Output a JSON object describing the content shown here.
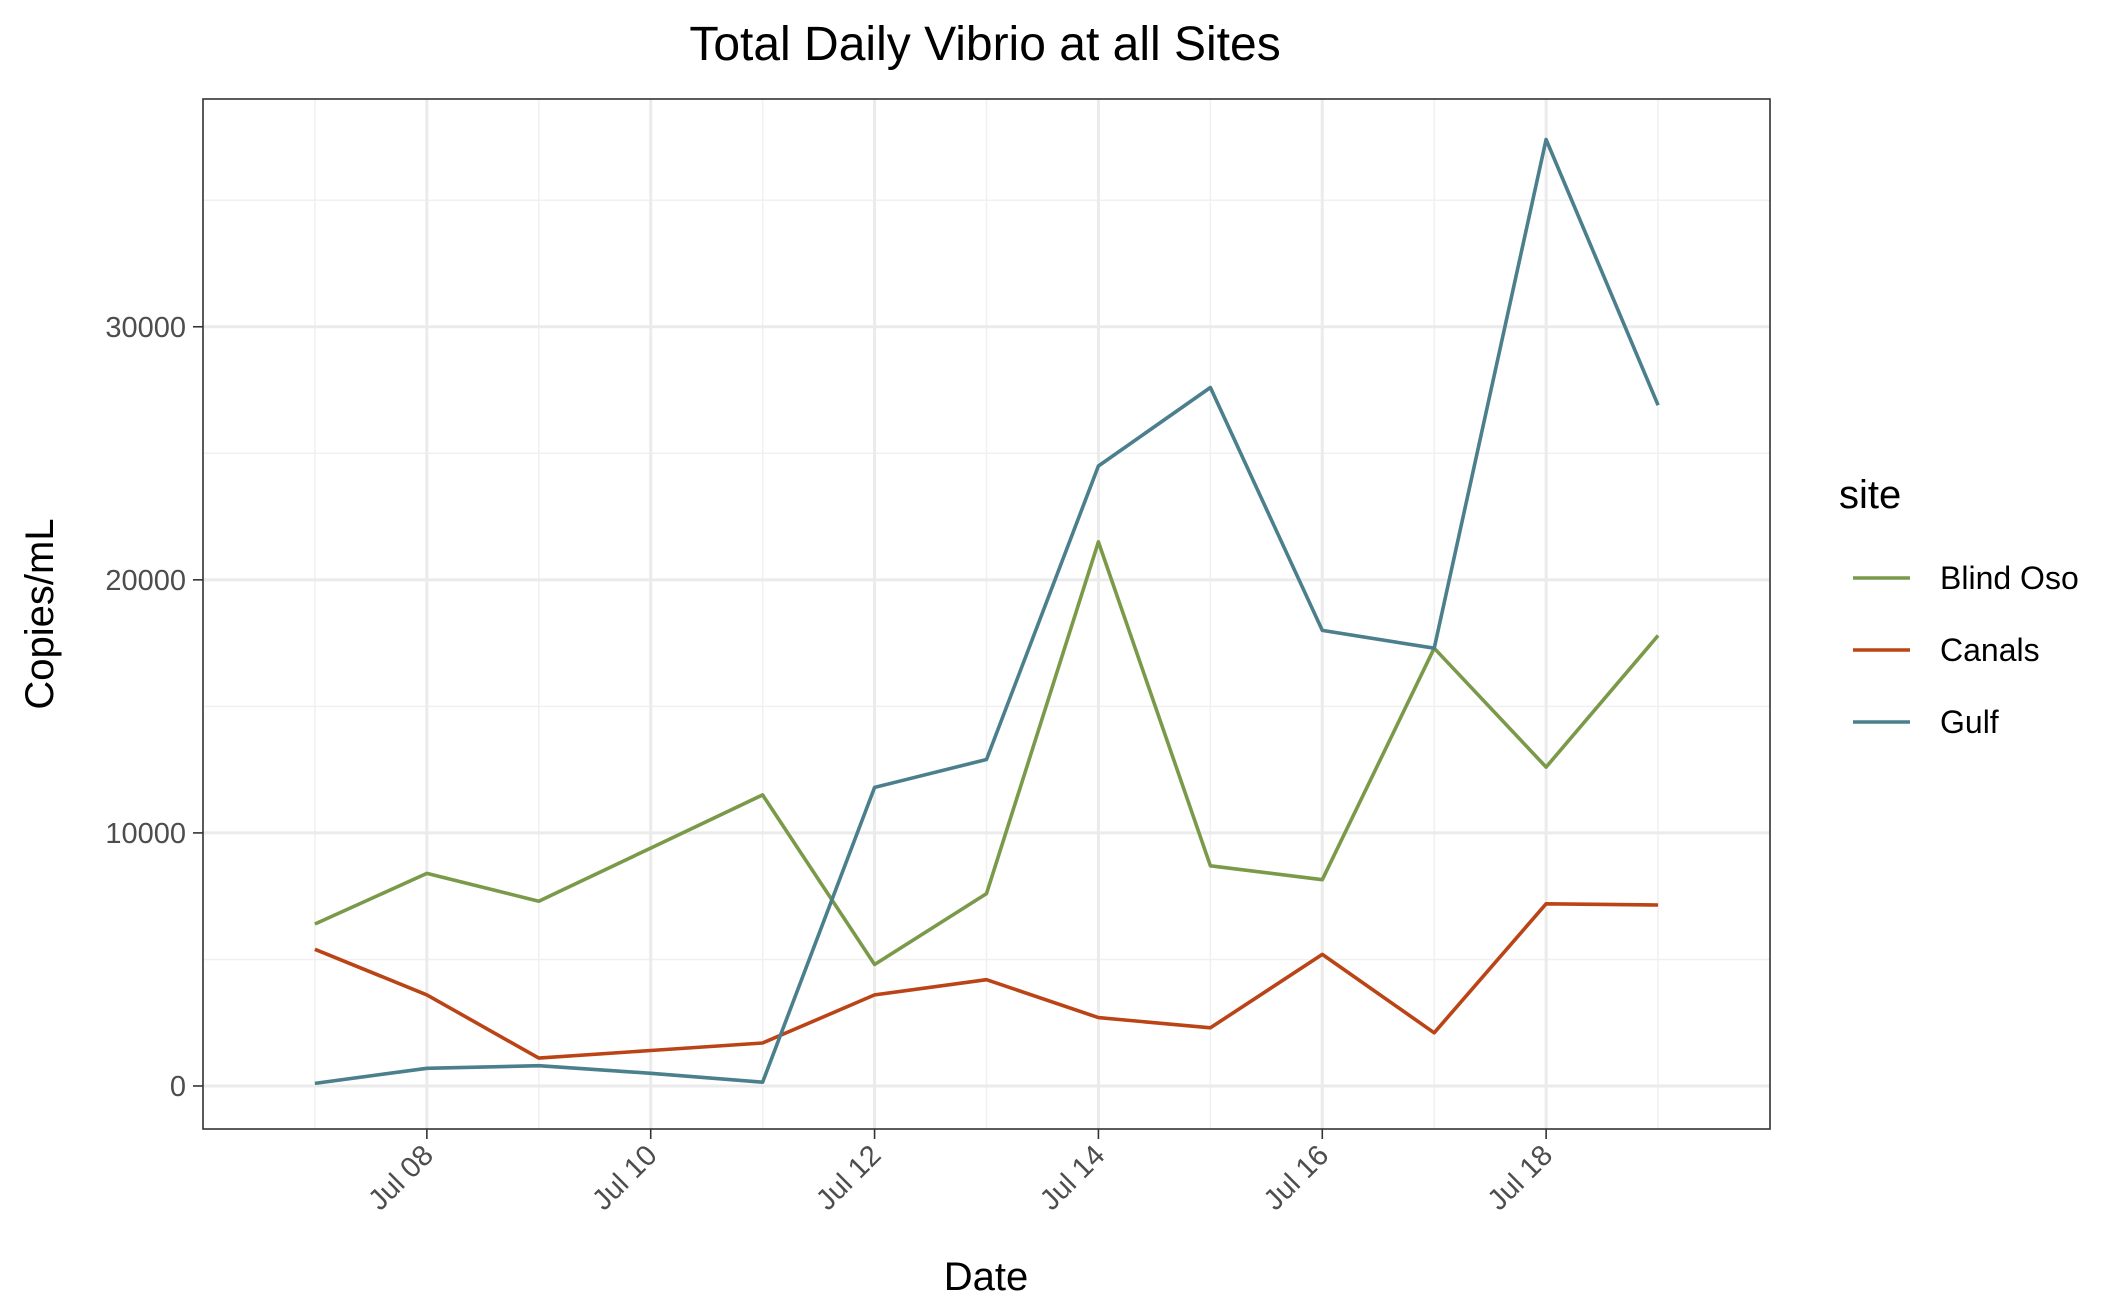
{
  "chart_data": {
    "type": "line",
    "title": "Total Daily Vibrio at all Sites",
    "xlabel": "Date",
    "ylabel": "Copies/mL",
    "x": [
      "Jul 07",
      "Jul 08",
      "Jul 09",
      "Jul 10",
      "Jul 11",
      "Jul 12",
      "Jul 13",
      "Jul 14",
      "Jul 15",
      "Jul 16",
      "Jul 17",
      "Jul 18",
      "Jul 19"
    ],
    "x_tick_labels": [
      "Jul 08",
      "Jul 10",
      "Jul 12",
      "Jul 14",
      "Jul 16",
      "Jul 18"
    ],
    "y_ticks": [
      0,
      10000,
      20000,
      30000
    ],
    "y_tick_labels": [
      "0",
      "10000",
      "20000",
      "30000"
    ],
    "xlim": [
      "Jul 06",
      "Jul 20"
    ],
    "ylim": [
      -1700,
      39000
    ],
    "grid": true,
    "legend": {
      "title": "site",
      "position": "right"
    },
    "series": [
      {
        "name": "Blind Oso",
        "color": "#7a9a4a",
        "values": [
          6400,
          8400,
          7300,
          9400,
          11500,
          4800,
          7600,
          21500,
          8700,
          8150,
          17300,
          12600,
          17800
        ]
      },
      {
        "name": "Canals",
        "color": "#bb4416",
        "values": [
          5400,
          3600,
          1100,
          1400,
          1700,
          3600,
          4200,
          2700,
          2300,
          5200,
          2100,
          7200,
          7150
        ]
      },
      {
        "name": "Gulf",
        "color": "#4b7f8c",
        "values": [
          100,
          700,
          800,
          500,
          150,
          11800,
          12900,
          24500,
          27600,
          18000,
          17300,
          37400,
          26900
        ]
      }
    ]
  }
}
